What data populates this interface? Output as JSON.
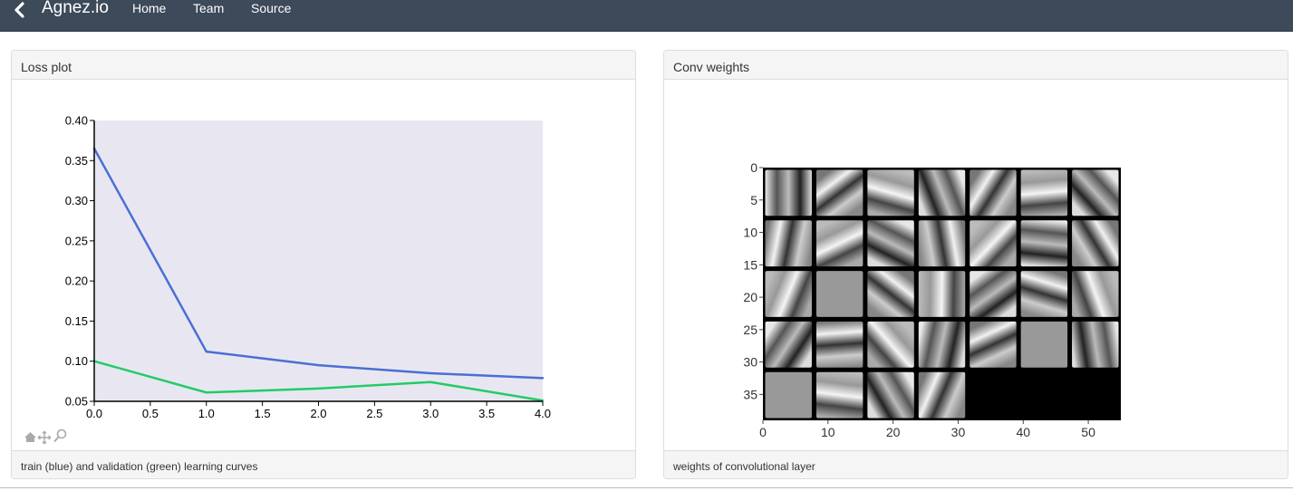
{
  "navbar": {
    "brand": "Agnez.io",
    "links": [
      "Home",
      "Team",
      "Source"
    ],
    "background": "#3c4a5a"
  },
  "panels": {
    "loss": {
      "title": "Loss plot",
      "footer": "train (blue) and validation (green) learning curves",
      "toolbar_icons": [
        "home-icon",
        "pan-icon",
        "zoom-icon"
      ]
    },
    "conv": {
      "title": "Conv weights",
      "footer": "weights of convolutional layer"
    }
  },
  "chart_data": [
    {
      "type": "line",
      "x": [
        0.0,
        1.0,
        2.0,
        3.0,
        4.0
      ],
      "series": [
        {
          "color": "#4a6fd4",
          "values": [
            0.365,
            0.112,
            0.095,
            0.085,
            0.079
          ]
        },
        {
          "color": "#22cc66",
          "values": [
            0.1,
            0.061,
            0.066,
            0.074,
            0.051
          ]
        }
      ],
      "xlim": [
        0.0,
        4.0
      ],
      "ylim": [
        0.05,
        0.4
      ],
      "xticks": [
        "0.0",
        "0.5",
        "1.0",
        "1.5",
        "2.0",
        "2.5",
        "3.0",
        "3.5",
        "4.0"
      ],
      "yticks": [
        "0.05",
        "0.10",
        "0.15",
        "0.20",
        "0.25",
        "0.30",
        "0.35",
        "0.40"
      ],
      "plot_background": "#e8e7f1",
      "grid": false
    },
    {
      "type": "heatmap",
      "colormap": "gray",
      "grid_rows": 5,
      "grid_cols": 7,
      "filled_tiles": 32,
      "xlim": [
        0,
        55
      ],
      "ylim": [
        39,
        0
      ],
      "xticks": [
        "0",
        "10",
        "20",
        "30",
        "40",
        "50"
      ],
      "yticks": [
        "0",
        "5",
        "10",
        "15",
        "20",
        "25",
        "30",
        "35"
      ]
    }
  ]
}
